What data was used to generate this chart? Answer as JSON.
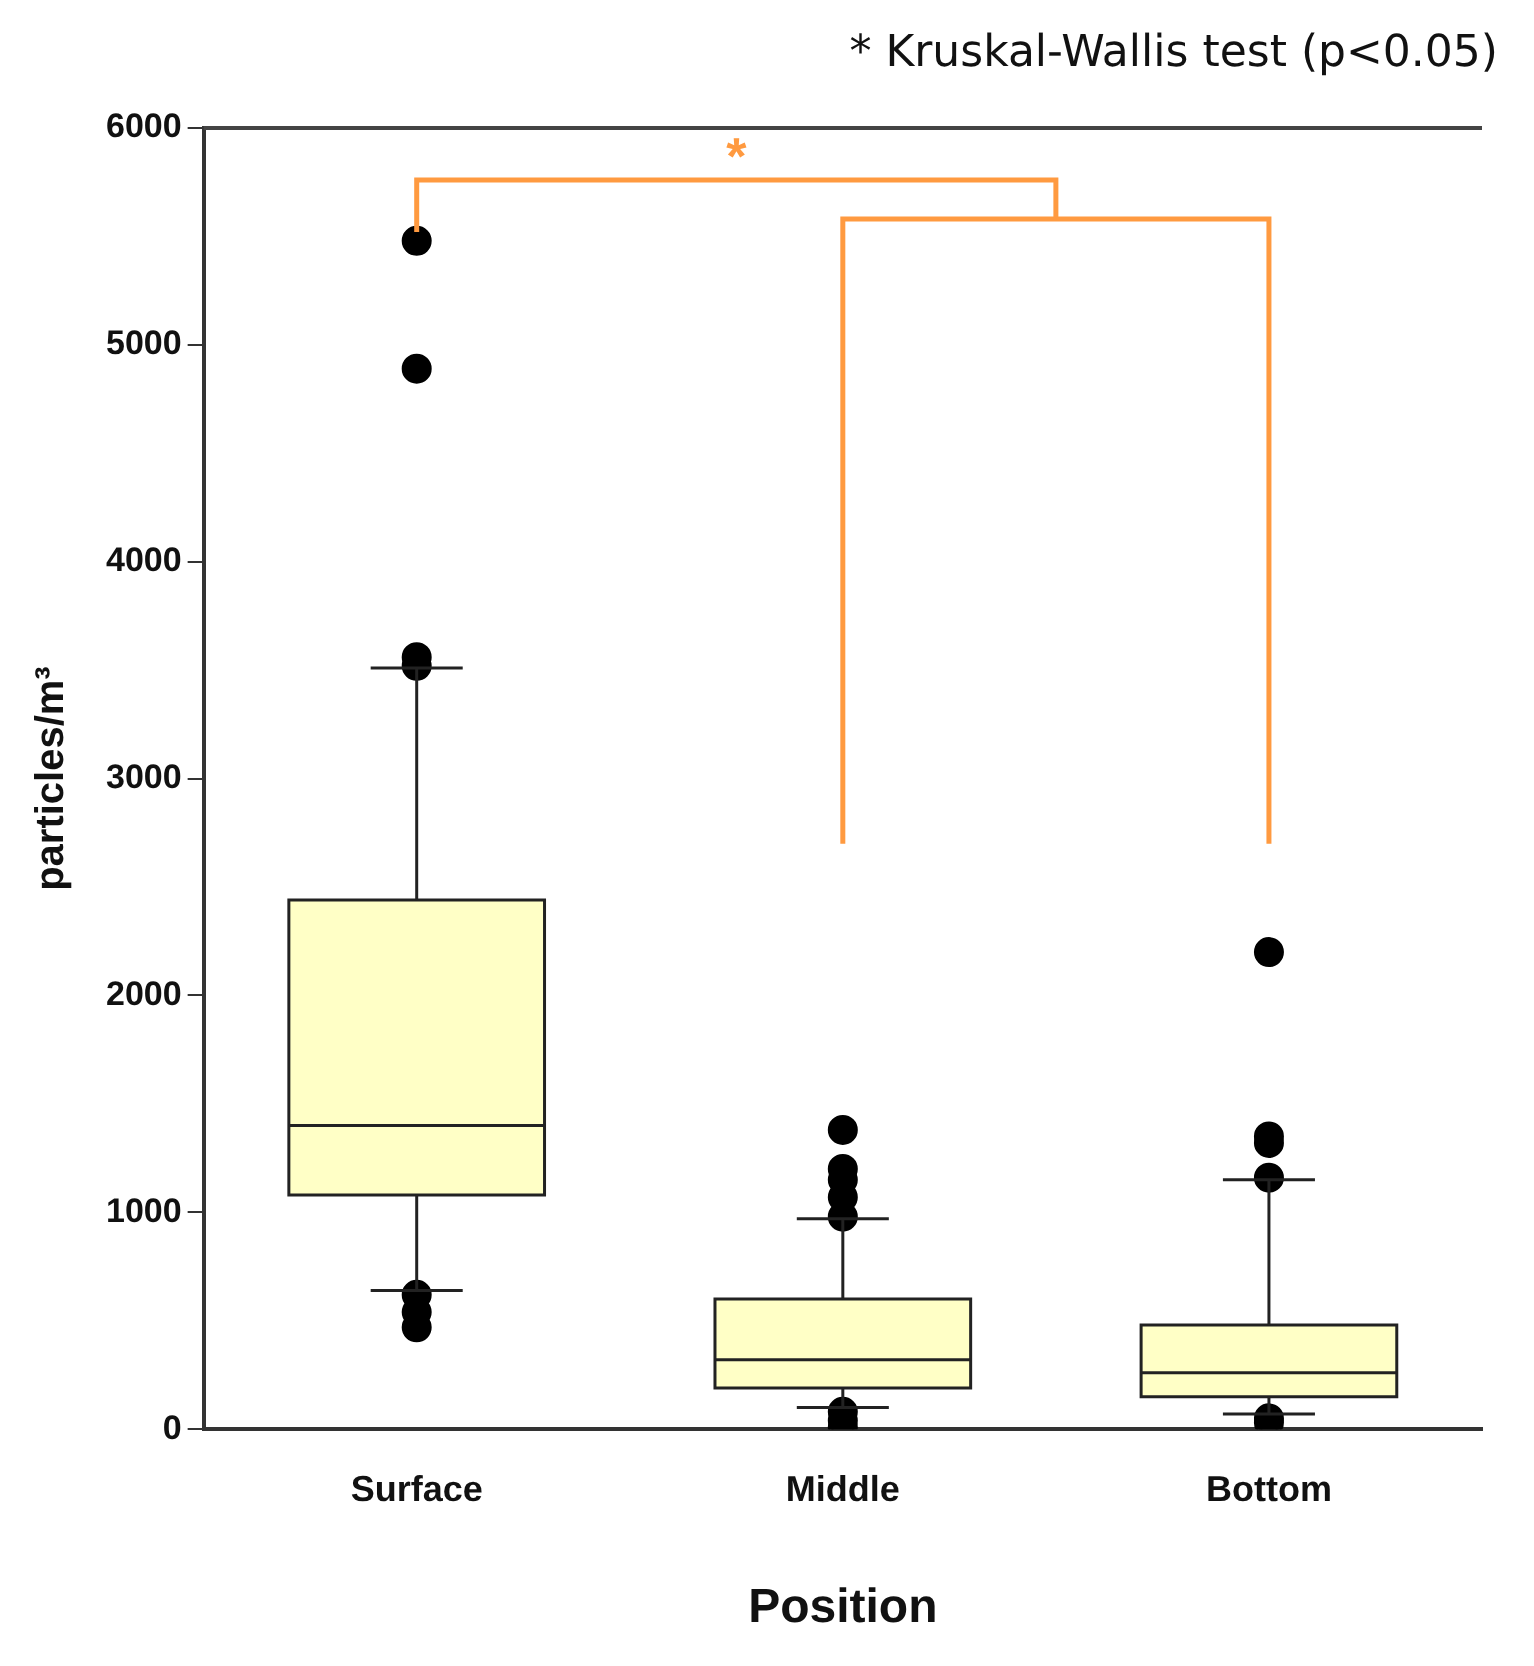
{
  "chart_data": {
    "type": "box",
    "xlabel": "Position",
    "ylabel": "particles/m³",
    "categories": [
      "Surface",
      "Middle",
      "Bottom"
    ],
    "boxes": [
      {
        "low": 640,
        "q1": 1080,
        "median": 1400,
        "q3": 2440,
        "high": 3510,
        "outliers": [
          5480,
          4890,
          3560,
          3520,
          620,
          540,
          470
        ]
      },
      {
        "low": 100,
        "q1": 190,
        "median": 320,
        "q3": 600,
        "high": 970,
        "outliers": [
          1380,
          1200,
          1150,
          1070,
          980,
          80,
          40,
          10
        ]
      },
      {
        "low": 70,
        "q1": 150,
        "median": 260,
        "q3": 480,
        "high": 1150,
        "outliers": [
          2200,
          1350,
          1320,
          1160,
          50,
          30
        ]
      }
    ],
    "color": "#ffffc6",
    "ylim": [
      0,
      6000
    ],
    "yticks": [
      0,
      1000,
      2000,
      3000,
      4000,
      5000,
      6000
    ],
    "grid": false,
    "legend": false,
    "annotations": [
      "* Kruskal-Wallis test (p<0.05)",
      "*"
    ]
  }
}
